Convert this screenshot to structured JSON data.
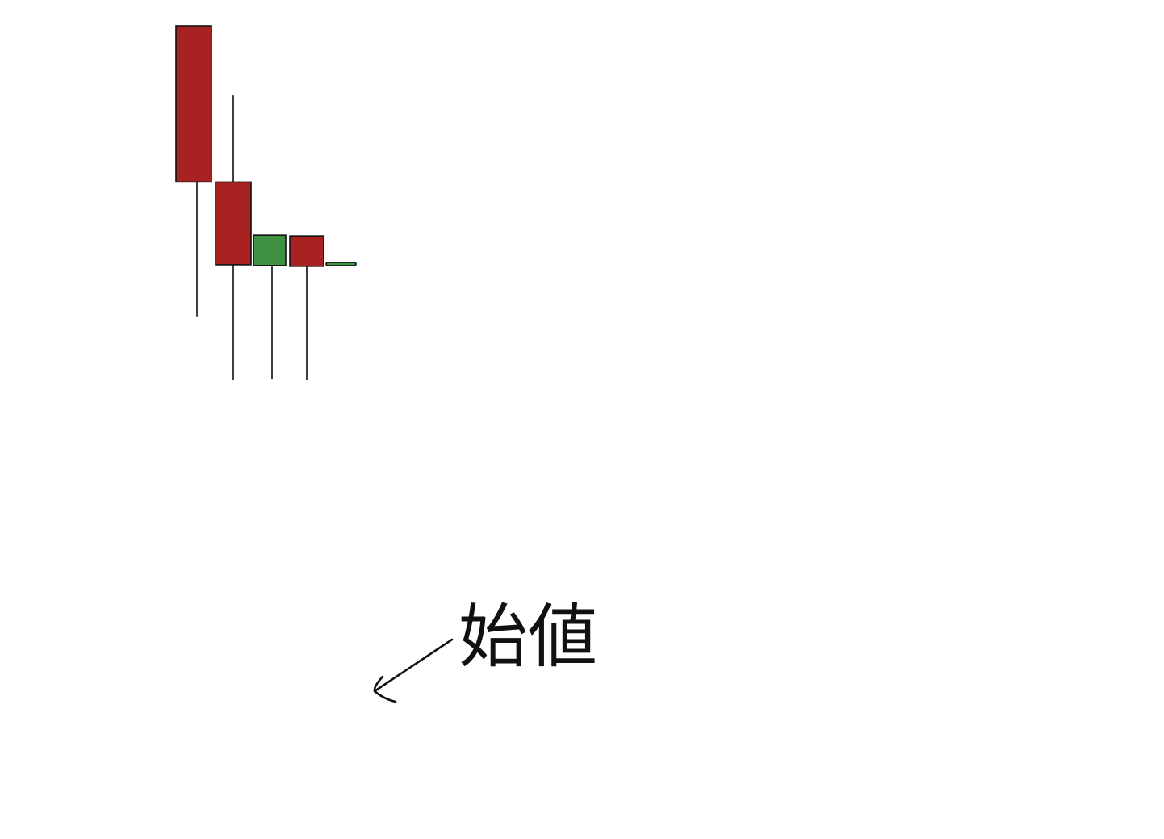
{
  "chart_data": {
    "type": "candlestick",
    "title": "",
    "xlabel": "",
    "ylabel": "",
    "grid": false,
    "legend": "none",
    "ylim": [
      0,
      1000
    ],
    "colors": {
      "down": "#a82222",
      "up": "#3e9141",
      "outline": "#111111"
    },
    "candles": [
      {
        "open": 1000,
        "close": 800,
        "high": 1000,
        "low": 628,
        "direction": "down"
      },
      {
        "open": 800,
        "close": 694,
        "high": 911,
        "low": 547,
        "direction": "down"
      },
      {
        "open": 693,
        "close": 732,
        "high": 732,
        "low": 548,
        "direction": "up"
      },
      {
        "open": 731,
        "close": 692,
        "high": 731,
        "low": 547,
        "direction": "down"
      },
      {
        "open": 694,
        "close": 697,
        "high": 697,
        "low": 694,
        "direction": "up"
      }
    ],
    "annotation": {
      "text": "始値",
      "target_candle": 4,
      "arrow": true
    }
  }
}
